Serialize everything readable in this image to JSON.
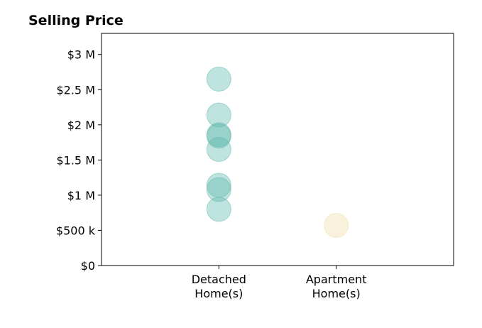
{
  "chart_data": {
    "type": "scatter",
    "title": "Selling Price",
    "xlabel": "",
    "ylabel": "",
    "categories": [
      [
        "Detached",
        "Home(s)"
      ],
      [
        "Apartment",
        "Home(s)"
      ]
    ],
    "xlim": [
      0,
      3
    ],
    "ylim": [
      0,
      3300000
    ],
    "yticks": [
      0,
      500000,
      1000000,
      1500000,
      2000000,
      2500000,
      3000000
    ],
    "ytick_labels": [
      "$0",
      "$500 k",
      "$1 M",
      "$1.5 M",
      "$2 M",
      "$2.5 M",
      "$3 M"
    ],
    "grid": false,
    "series": [
      {
        "category_index": 0,
        "color": "#5fb8ad",
        "values": [
          2650000,
          2140000,
          1860000,
          1840000,
          1650000,
          1140000,
          1080000,
          800000
        ]
      },
      {
        "category_index": 1,
        "color": "#f1dba6",
        "values": [
          570000
        ]
      }
    ]
  }
}
